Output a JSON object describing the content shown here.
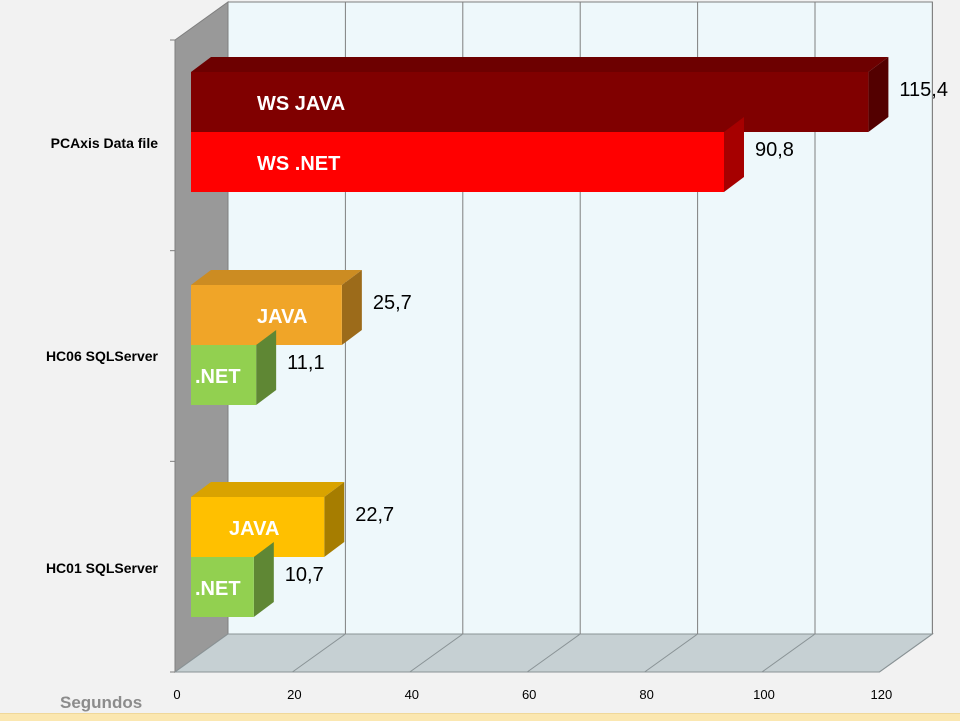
{
  "chart_data": {
    "type": "bar",
    "orientation": "horizontal",
    "style": "3d",
    "xlabel": "Segundos",
    "ylabel": "",
    "xlim": [
      0,
      120
    ],
    "xticks": [
      0,
      20,
      40,
      60,
      80,
      100,
      120
    ],
    "grid": true,
    "legend": "none",
    "categories": [
      "PCAxis Data file",
      "HC06 SQLServer",
      "HC01 SQLServer"
    ],
    "groups": [
      {
        "category": "PCAxis Data file",
        "bars": [
          {
            "label": "WS JAVA",
            "value": 115.4,
            "value_label": "115,4",
            "color": "#800000"
          },
          {
            "label": "WS .NET",
            "value": 90.8,
            "value_label": "90,8",
            "color": "#ff0000"
          }
        ]
      },
      {
        "category": "HC06 SQLServer",
        "bars": [
          {
            "label": "JAVA",
            "value": 25.7,
            "value_label": "25,7",
            "color": "#f0a528"
          },
          {
            "label": ".NET",
            "value": 11.1,
            "value_label": "11,1",
            "color": "#92d050"
          }
        ]
      },
      {
        "category": "HC01 SQLServer",
        "bars": [
          {
            "label": "JAVA",
            "value": 22.7,
            "value_label": "22,7",
            "color": "#ffc000"
          },
          {
            "label": ".NET",
            "value": 10.7,
            "value_label": "10,7",
            "color": "#92d050"
          }
        ]
      }
    ]
  }
}
